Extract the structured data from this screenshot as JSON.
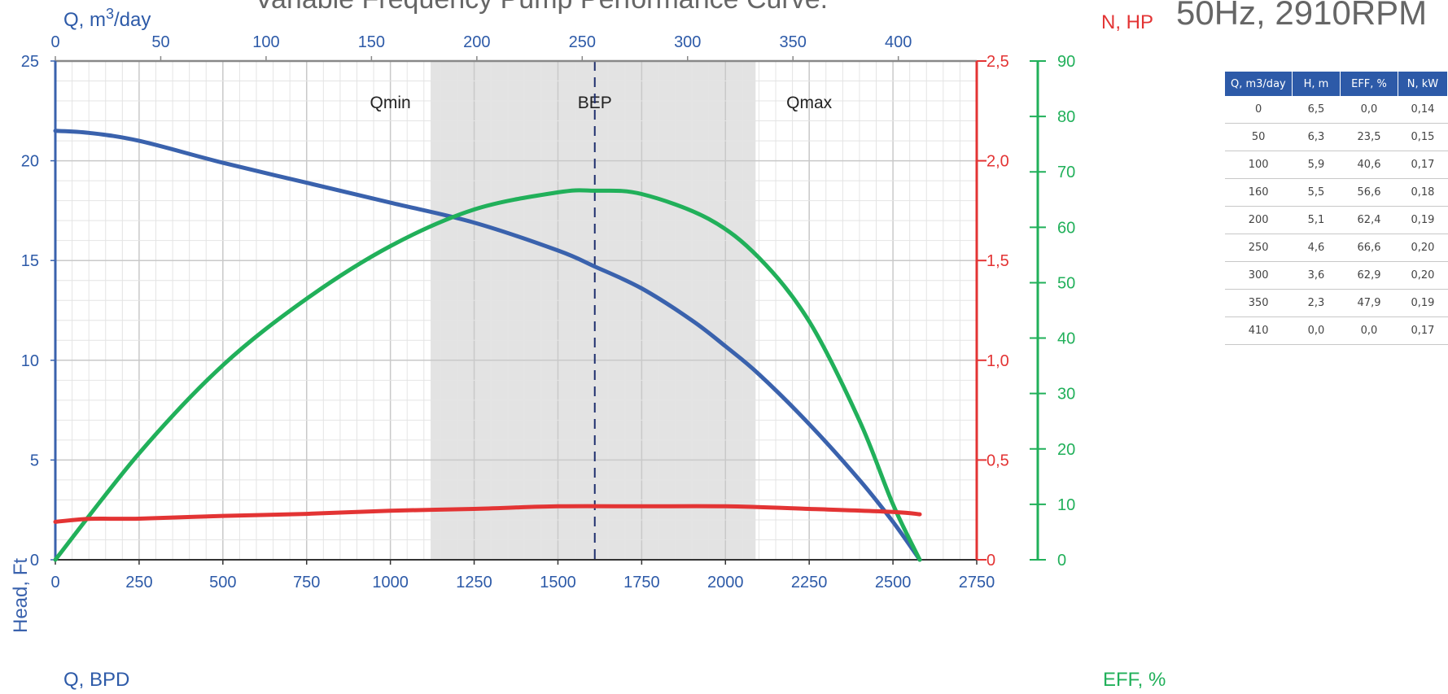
{
  "chart_data": {
    "type": "line",
    "title": "Variable Frequency Pump Performance Curve.",
    "subtitle": "50Hz, 2910RPM",
    "axes": {
      "x_bottom": {
        "label": "Q, BPD",
        "min": 0,
        "max": 2750,
        "ticks": [
          0,
          250,
          500,
          750,
          1000,
          1250,
          1500,
          1750,
          2000,
          2250,
          2500,
          2750
        ]
      },
      "x_top": {
        "label_prefix": "Q, m",
        "label_sup": "3",
        "label_suffix": "/day",
        "min": 0,
        "max": 437.2,
        "ticks": [
          0,
          50,
          100,
          150,
          200,
          250,
          300,
          350,
          400
        ]
      },
      "y_left": {
        "label": "Head, Ft",
        "min": 0,
        "max": 25,
        "ticks": [
          0,
          5,
          10,
          15,
          20,
          25
        ]
      },
      "y_power": {
        "label": "N, HP",
        "min": 0,
        "max": 2.5,
        "ticks": [
          "0",
          "0,5",
          "1,0",
          "1,5",
          "2,0",
          "2,5"
        ]
      },
      "y_eff": {
        "label": "EFF, %",
        "min": 0,
        "max": 90,
        "ticks": [
          0,
          10,
          20,
          30,
          40,
          50,
          60,
          70,
          80,
          90
        ]
      }
    },
    "operating_zone": {
      "x_min": 1120,
      "x_max": 2090,
      "min_label": "Qmin",
      "bep_label": "BEP",
      "max_label": "Qmax",
      "bep_x": 1610
    },
    "series": [
      {
        "name": "Head",
        "axis": "y_left",
        "color": "#3a62ad",
        "x": [
          0,
          100,
          250,
          500,
          750,
          1000,
          1250,
          1500,
          1610,
          1750,
          1900,
          2000,
          2100,
          2250,
          2400,
          2500,
          2580
        ],
        "y": [
          21.5,
          21.4,
          21.0,
          19.9,
          18.9,
          17.9,
          16.9,
          15.5,
          14.7,
          13.6,
          12.0,
          10.7,
          9.3,
          6.8,
          4.0,
          1.9,
          0.0
        ]
      },
      {
        "name": "Efficiency",
        "axis": "y_eff",
        "color": "#21b05a",
        "x": [
          0,
          250,
          500,
          750,
          1000,
          1250,
          1500,
          1610,
          1750,
          1950,
          2100,
          2250,
          2400,
          2500,
          2580
        ],
        "y": [
          0,
          19.2,
          35.1,
          47.1,
          56.6,
          63.2,
          66.3,
          66.6,
          66.0,
          61.5,
          54.5,
          43.0,
          25.1,
          10.0,
          0.0
        ]
      },
      {
        "name": "Power",
        "axis": "y_power",
        "color": "#e33434",
        "x": [
          0,
          100,
          250,
          500,
          750,
          1000,
          1250,
          1500,
          1750,
          2000,
          2250,
          2500,
          2580
        ],
        "y": [
          0.19,
          0.205,
          0.206,
          0.22,
          0.23,
          0.246,
          0.255,
          0.268,
          0.268,
          0.268,
          0.255,
          0.24,
          0.228
        ]
      }
    ]
  },
  "table": {
    "headers": [
      "Q, m3/day",
      "H, m",
      "EFF, %",
      "N, kW"
    ],
    "rows": [
      [
        "0",
        "6,5",
        "0,0",
        "0,14"
      ],
      [
        "50",
        "6,3",
        "23,5",
        "0,15"
      ],
      [
        "100",
        "5,9",
        "40,6",
        "0,17"
      ],
      [
        "160",
        "5,5",
        "56,6",
        "0,18"
      ],
      [
        "200",
        "5,1",
        "62,4",
        "0,19"
      ],
      [
        "250",
        "4,6",
        "66,6",
        "0,20"
      ],
      [
        "300",
        "3,6",
        "62,9",
        "0,20"
      ],
      [
        "350",
        "2,3",
        "47,9",
        "0,19"
      ],
      [
        "410",
        "0,0",
        "0,0",
        "0,17"
      ]
    ]
  },
  "colors": {
    "head_axis": "#3a62ad",
    "power_axis": "#e33434",
    "eff_axis": "#21b05a",
    "grid_major": "#c9c9c9",
    "grid_minor": "#e4e4e4",
    "zone": "#e3e3e3",
    "bep_line": "#1f2f6e"
  }
}
